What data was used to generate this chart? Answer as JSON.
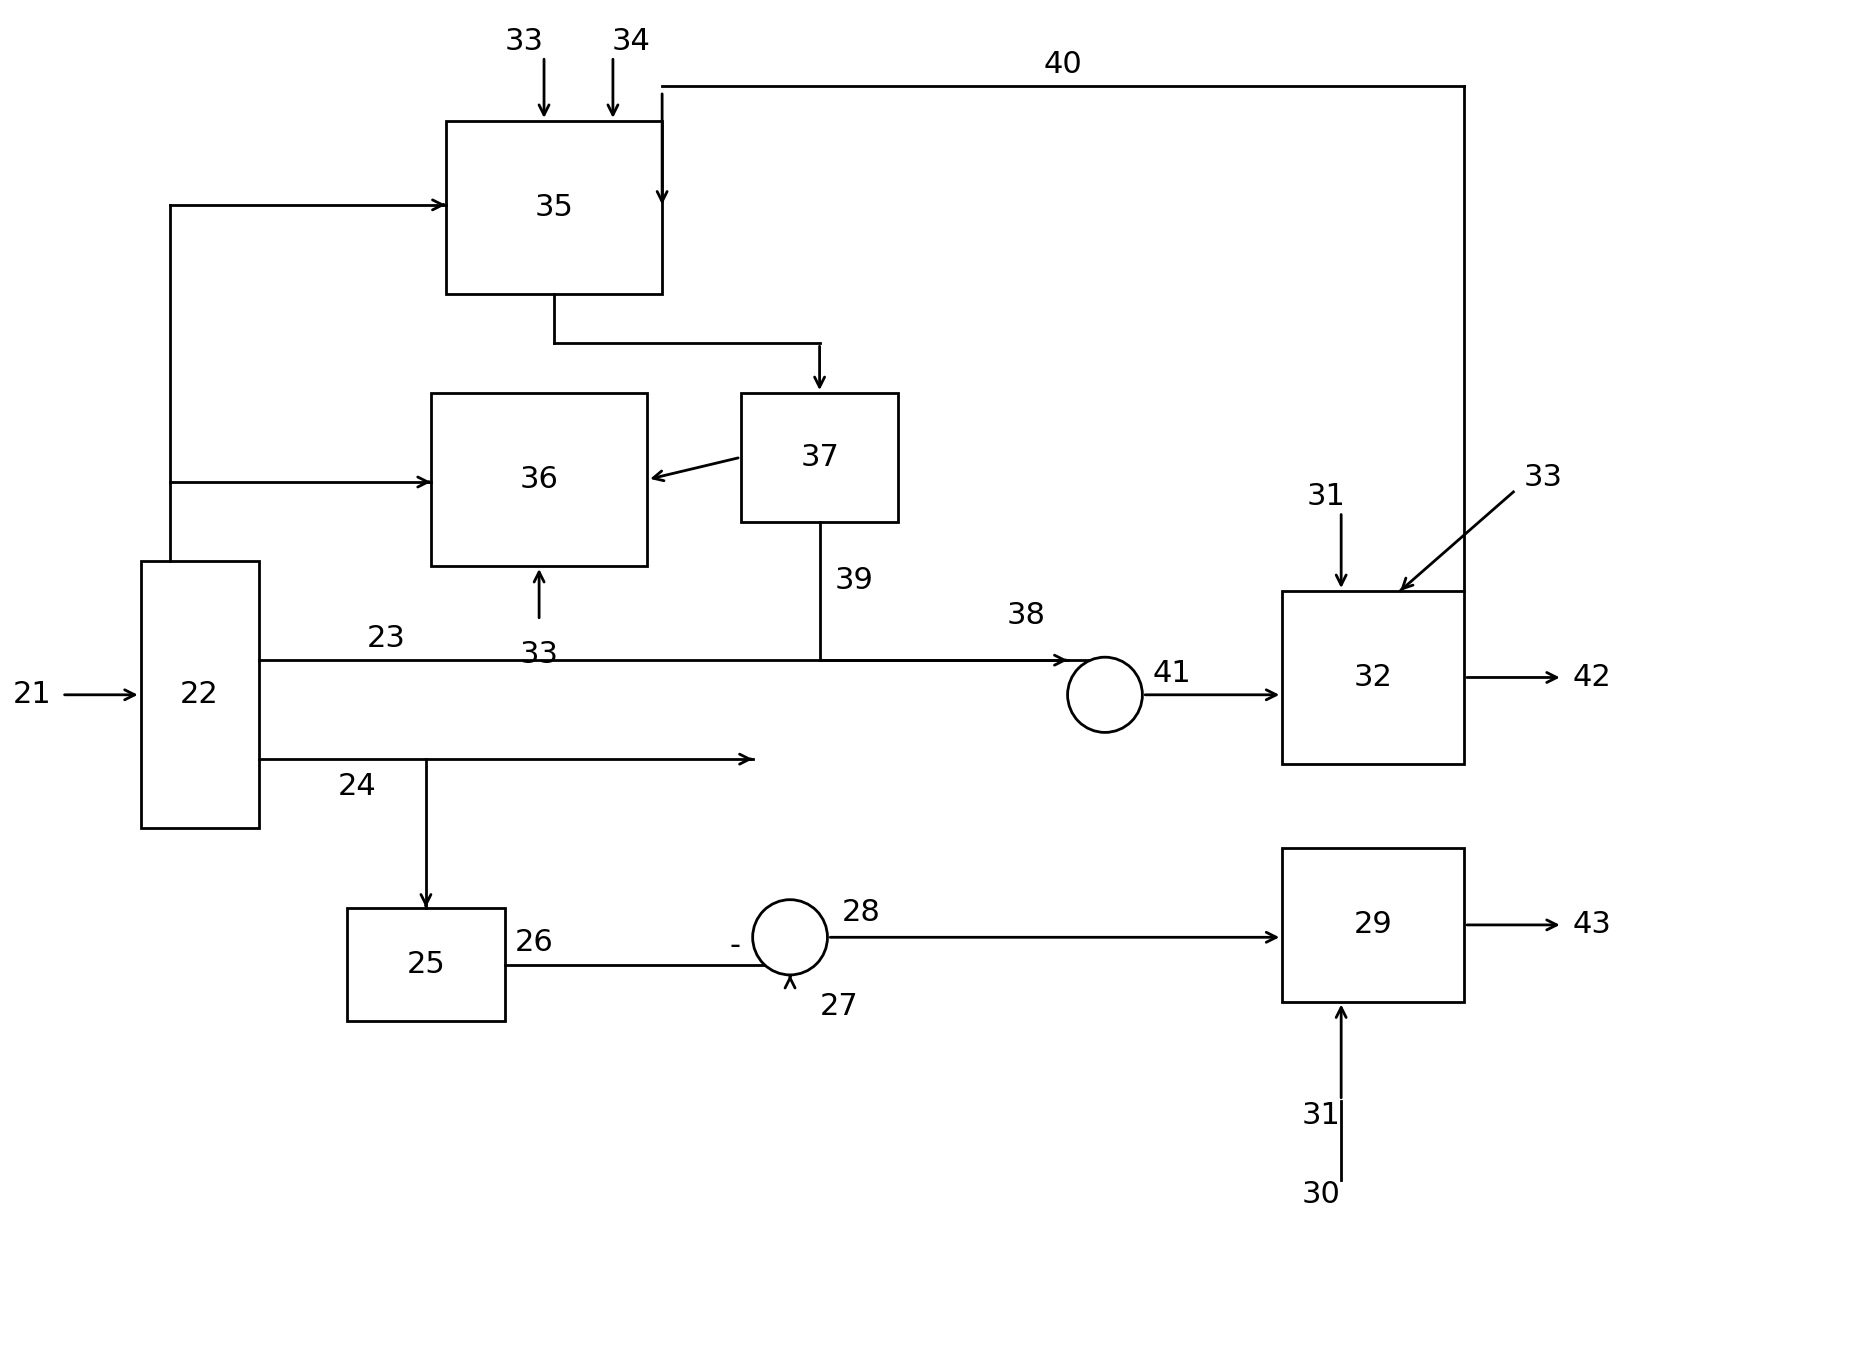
{
  "figsize": [
    18.51,
    13.52
  ],
  "dpi": 100,
  "bg_color": "#ffffff",
  "lw": 2.0,
  "fontsize": 22,
  "arrow_scale": 18
}
